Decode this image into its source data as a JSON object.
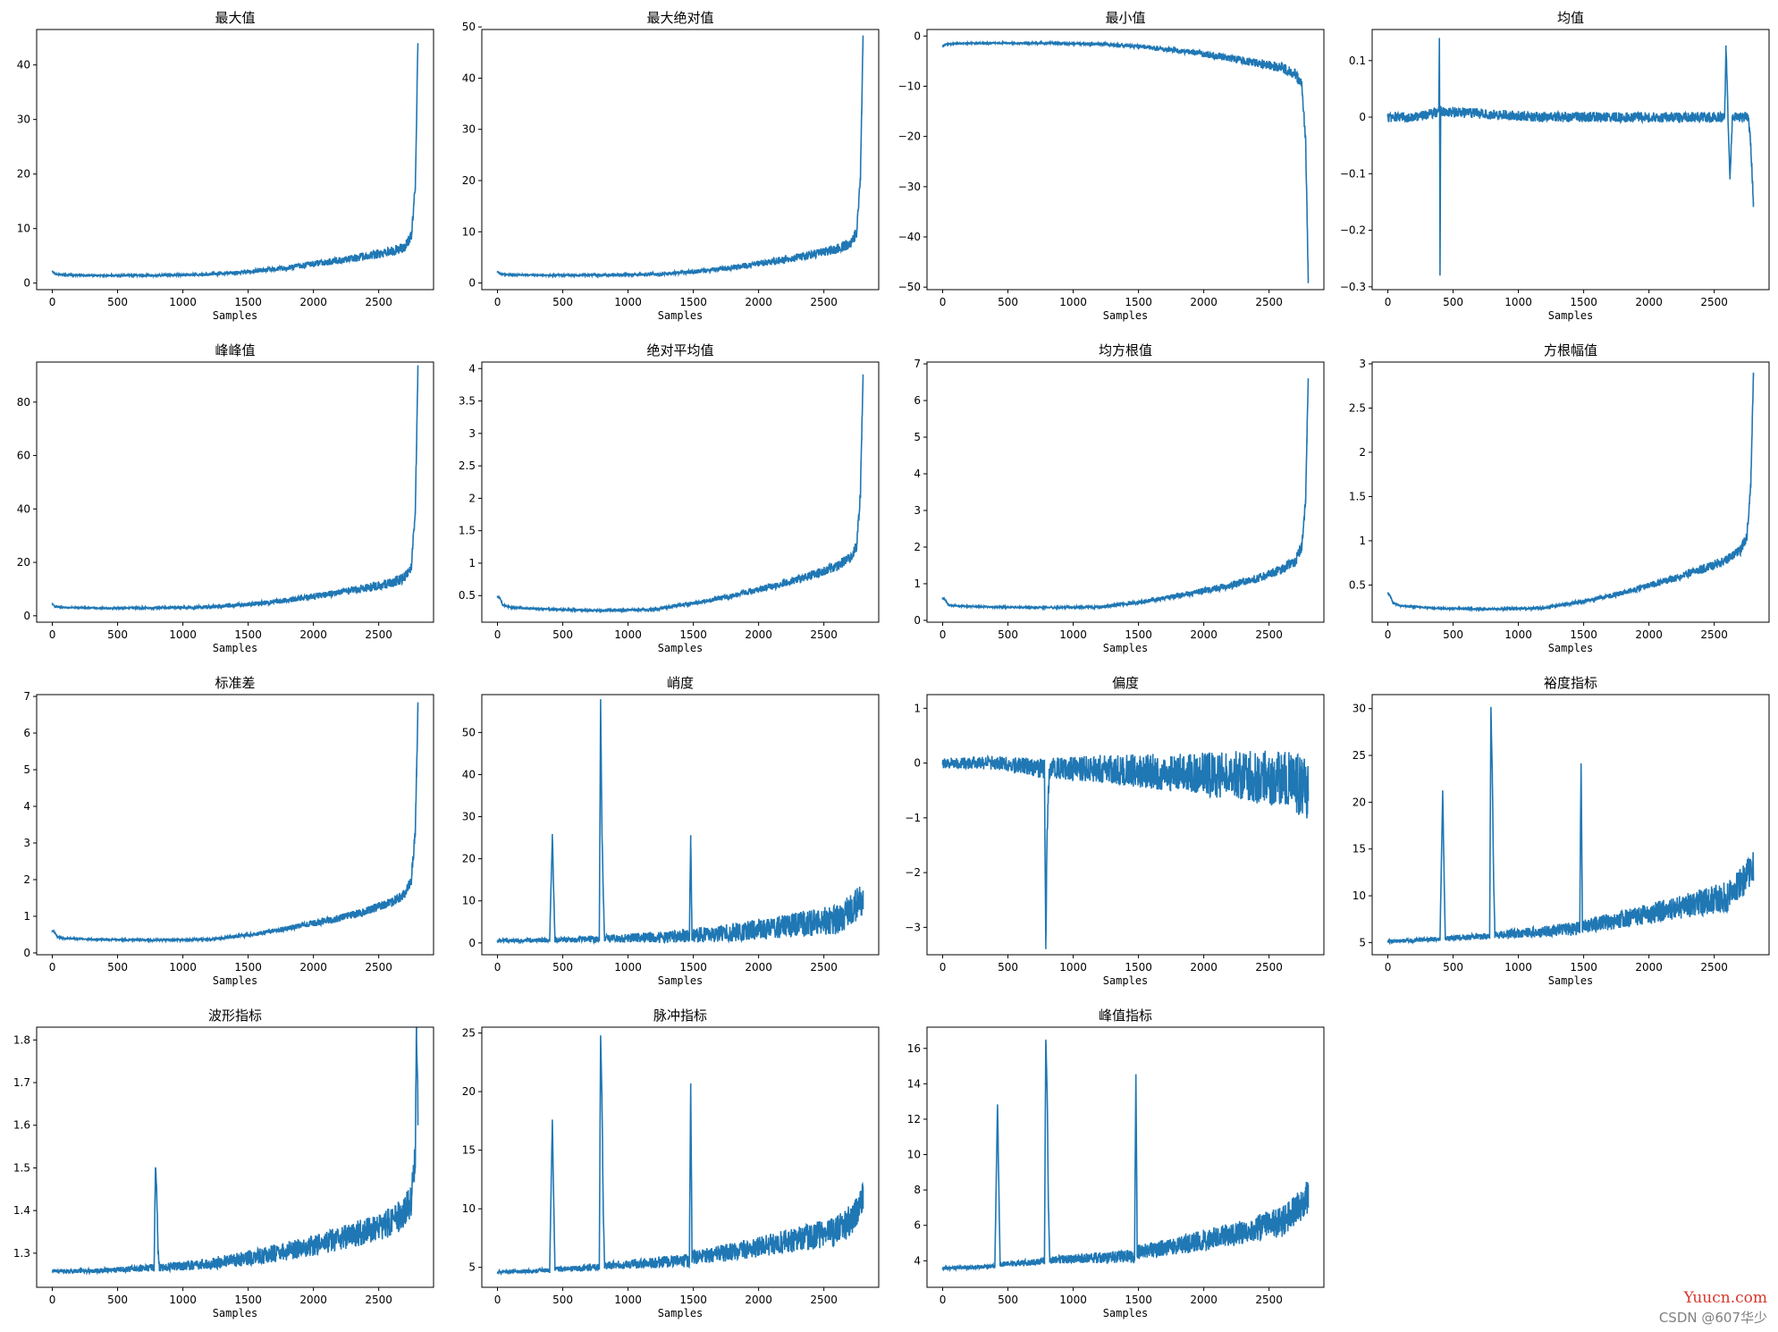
{
  "figure": {
    "background": "#ffffff"
  },
  "style": {
    "line_color": "#1f77b4",
    "axis_color": "#000000"
  },
  "watermarks": {
    "site": "Yuucn.com",
    "credit": "CSDN @607华少"
  },
  "chart_data": [
    {
      "type": "line",
      "title": "最大值",
      "xlabel": "Samples",
      "ylabel": "",
      "xlim": [
        -120,
        2920
      ],
      "ylim": [
        -1.2,
        46.5
      ],
      "xticks": [
        0,
        500,
        1000,
        1500,
        2000,
        2500
      ],
      "yticks": [
        0,
        10,
        20,
        30,
        40
      ],
      "shape": "rise",
      "series": [
        {
          "x": [
            0,
            20,
            100,
            400,
            800,
            1200,
            1500,
            1800,
            2000,
            2200,
            2400,
            2600,
            2700,
            2750,
            2780,
            2790,
            2800
          ],
          "y": [
            2.1,
            1.6,
            1.4,
            1.3,
            1.3,
            1.4,
            1.8,
            2.5,
            3.1,
            3.7,
            4.4,
            5.2,
            6.0,
            8.0,
            17.0,
            29.0,
            44.0
          ]
        }
      ]
    },
    {
      "type": "line",
      "title": "最大绝对值",
      "xlabel": "Samples",
      "ylabel": "",
      "xlim": [
        -120,
        2920
      ],
      "ylim": [
        -1.3,
        49.5
      ],
      "xticks": [
        0,
        500,
        1000,
        1500,
        2000,
        2500
      ],
      "yticks": [
        0,
        10,
        20,
        30,
        40,
        50
      ],
      "shape": "rise",
      "series": [
        {
          "x": [
            0,
            20,
            100,
            400,
            800,
            1200,
            1500,
            1800,
            2000,
            2200,
            2400,
            2600,
            2700,
            2750,
            2780,
            2790,
            2800
          ],
          "y": [
            2.2,
            1.7,
            1.5,
            1.4,
            1.4,
            1.5,
            1.9,
            2.7,
            3.4,
            4.1,
            4.9,
            6.0,
            7.0,
            9.0,
            20.0,
            33.0,
            48.0
          ]
        }
      ]
    },
    {
      "type": "line",
      "title": "最小值",
      "xlabel": "Samples",
      "ylabel": "",
      "xlim": [
        -120,
        2920
      ],
      "ylim": [
        -50.5,
        1.3
      ],
      "xticks": [
        0,
        500,
        1000,
        1500,
        2000,
        2500
      ],
      "yticks": [
        -50,
        -40,
        -30,
        -20,
        -10,
        0
      ],
      "shape": "fall",
      "series": [
        {
          "x": [
            0,
            20,
            100,
            400,
            800,
            1200,
            1500,
            1800,
            2000,
            2200,
            2400,
            2600,
            2700,
            2750,
            2780,
            2790,
            2800
          ],
          "y": [
            -2.0,
            -1.6,
            -1.4,
            -1.3,
            -1.3,
            -1.4,
            -1.8,
            -2.5,
            -3.2,
            -3.9,
            -4.7,
            -5.6,
            -6.8,
            -9.0,
            -20.0,
            -33.0,
            -48.0
          ]
        }
      ]
    },
    {
      "type": "line",
      "title": "均值",
      "xlabel": "Samples",
      "ylabel": "",
      "xlim": [
        -120,
        2920
      ],
      "ylim": [
        -0.305,
        0.155
      ],
      "xticks": [
        0,
        500,
        1000,
        1500,
        2000,
        2500
      ],
      "yticks": [
        -0.3,
        -0.2,
        -0.1,
        0.0,
        0.1
      ],
      "shape": "flat",
      "series": [
        {
          "x": [
            0,
            200,
            390,
            395,
            400,
            405,
            410,
            800,
            1200,
            1600,
            2000,
            2400,
            2580,
            2590,
            2600,
            2620,
            2640,
            2700,
            2760,
            2780,
            2800
          ],
          "y": [
            0.0,
            0.0,
            0.01,
            0.14,
            -0.28,
            0.02,
            0.01,
            0.005,
            0.0,
            0.0,
            0.0,
            0.0,
            0.0,
            0.12,
            0.05,
            -0.11,
            0.0,
            0.0,
            0.0,
            -0.05,
            -0.15
          ]
        }
      ]
    },
    {
      "type": "line",
      "title": "峰峰值",
      "xlabel": "Samples",
      "ylabel": "",
      "xlim": [
        -120,
        2920
      ],
      "ylim": [
        -2.4,
        95
      ],
      "xticks": [
        0,
        500,
        1000,
        1500,
        2000,
        2500
      ],
      "yticks": [
        0,
        20,
        40,
        60,
        80
      ],
      "shape": "rise",
      "series": [
        {
          "x": [
            0,
            20,
            100,
            400,
            800,
            1200,
            1500,
            1800,
            2000,
            2200,
            2400,
            2600,
            2700,
            2750,
            2780,
            2790,
            2800
          ],
          "y": [
            4.2,
            3.3,
            2.9,
            2.7,
            2.7,
            2.9,
            3.7,
            5.2,
            6.5,
            7.8,
            9.3,
            11.0,
            13.0,
            17.0,
            38.0,
            62.0,
            92.0
          ]
        }
      ]
    },
    {
      "type": "line",
      "title": "绝对平均值",
      "xlabel": "Samples",
      "ylabel": "",
      "xlim": [
        -120,
        2920
      ],
      "ylim": [
        0.09,
        4.1
      ],
      "xticks": [
        0,
        500,
        1000,
        1500,
        2000,
        2500
      ],
      "yticks": [
        0.5,
        1.0,
        1.5,
        2.0,
        2.5,
        3.0,
        3.5,
        4.0
      ],
      "shape": "rise",
      "series": [
        {
          "x": [
            0,
            20,
            40,
            100,
            400,
            800,
            1200,
            1500,
            1800,
            2000,
            2200,
            2400,
            2600,
            2700,
            2750,
            2780,
            2790,
            2800
          ],
          "y": [
            0.48,
            0.45,
            0.35,
            0.31,
            0.28,
            0.26,
            0.27,
            0.36,
            0.47,
            0.56,
            0.65,
            0.76,
            0.9,
            1.02,
            1.2,
            2.0,
            2.9,
            3.9
          ]
        }
      ]
    },
    {
      "type": "line",
      "title": "均方根值",
      "xlabel": "Samples",
      "ylabel": "",
      "xlim": [
        -120,
        2920
      ],
      "ylim": [
        -0.05,
        7.05
      ],
      "xticks": [
        0,
        500,
        1000,
        1500,
        2000,
        2500
      ],
      "yticks": [
        0,
        1,
        2,
        3,
        4,
        5,
        6,
        7
      ],
      "shape": "rise",
      "series": [
        {
          "x": [
            0,
            20,
            40,
            100,
            400,
            800,
            1200,
            1500,
            1800,
            2000,
            2200,
            2400,
            2600,
            2700,
            2750,
            2780,
            2790,
            2800
          ],
          "y": [
            0.6,
            0.55,
            0.42,
            0.38,
            0.35,
            0.33,
            0.34,
            0.45,
            0.62,
            0.75,
            0.88,
            1.05,
            1.3,
            1.5,
            1.9,
            3.2,
            4.8,
            6.6
          ]
        }
      ]
    },
    {
      "type": "line",
      "title": "方根幅值",
      "xlabel": "Samples",
      "ylabel": "",
      "xlim": [
        -120,
        2920
      ],
      "ylim": [
        0.08,
        3.02
      ],
      "xticks": [
        0,
        500,
        1000,
        1500,
        2000,
        2500
      ],
      "yticks": [
        0.5,
        1.0,
        1.5,
        2.0,
        2.5,
        3.0
      ],
      "shape": "rise",
      "series": [
        {
          "x": [
            0,
            20,
            40,
            100,
            400,
            800,
            1200,
            1500,
            1800,
            2000,
            2200,
            2400,
            2600,
            2700,
            2750,
            2780,
            2790,
            2800
          ],
          "y": [
            0.4,
            0.37,
            0.29,
            0.26,
            0.23,
            0.22,
            0.23,
            0.3,
            0.39,
            0.47,
            0.55,
            0.64,
            0.75,
            0.85,
            1.0,
            1.6,
            2.2,
            2.85
          ]
        }
      ]
    },
    {
      "type": "line",
      "title": "标准差",
      "xlabel": "Samples",
      "ylabel": "",
      "xlim": [
        -120,
        2920
      ],
      "ylim": [
        -0.05,
        7.05
      ],
      "xticks": [
        0,
        500,
        1000,
        1500,
        2000,
        2500
      ],
      "yticks": [
        0,
        1,
        2,
        3,
        4,
        5,
        6,
        7
      ],
      "shape": "rise",
      "series": [
        {
          "x": [
            0,
            20,
            40,
            100,
            400,
            800,
            1200,
            1500,
            1800,
            2000,
            2200,
            2400,
            2600,
            2700,
            2750,
            2780,
            2790,
            2800
          ],
          "y": [
            0.6,
            0.55,
            0.42,
            0.38,
            0.35,
            0.33,
            0.34,
            0.45,
            0.62,
            0.75,
            0.88,
            1.05,
            1.3,
            1.5,
            1.9,
            3.2,
            4.8,
            6.6
          ]
        }
      ]
    },
    {
      "type": "line",
      "title": "峭度",
      "xlabel": "Samples",
      "ylabel": "",
      "xlim": [
        -120,
        2920
      ],
      "ylim": [
        -2.8,
        59
      ],
      "xticks": [
        0,
        500,
        1000,
        1500,
        2000,
        2500
      ],
      "yticks": [
        0,
        10,
        20,
        30,
        40,
        50
      ],
      "shape": "spikes",
      "series": [
        {
          "x": [
            0,
            400,
            420,
            440,
            780,
            790,
            800,
            810,
            820,
            1470,
            1480,
            1490,
            1800,
            2200,
            2600,
            2700,
            2800
          ],
          "y": [
            0.3,
            0.3,
            25.0,
            0.3,
            0.4,
            57.0,
            26.0,
            12.0,
            0.4,
            0.5,
            23.5,
            0.6,
            1.0,
            2.0,
            3.0,
            5.0,
            8.0
          ]
        }
      ]
    },
    {
      "type": "line",
      "title": "偏度",
      "xlabel": "Samples",
      "ylabel": "",
      "xlim": [
        -120,
        2920
      ],
      "ylim": [
        -3.5,
        1.25
      ],
      "xticks": [
        0,
        500,
        1000,
        1500,
        2000,
        2500
      ],
      "yticks": [
        -3,
        -2,
        -1,
        0,
        1
      ],
      "shape": "spread",
      "series": [
        {
          "x": [
            0,
            400,
            780,
            790,
            800,
            810,
            820,
            1200,
            1600,
            2000,
            2400,
            2600,
            2700,
            2800
          ],
          "y": [
            0.0,
            0.0,
            -0.1,
            -3.3,
            -1.2,
            -0.5,
            -0.1,
            -0.1,
            -0.15,
            -0.2,
            -0.25,
            -0.3,
            -0.35,
            -0.5
          ]
        }
      ]
    },
    {
      "type": "line",
      "title": "裕度指标",
      "xlabel": "Samples",
      "ylabel": "",
      "xlim": [
        -120,
        2920
      ],
      "ylim": [
        3.7,
        31.5
      ],
      "xticks": [
        0,
        500,
        1000,
        1500,
        2000,
        2500
      ],
      "yticks": [
        5,
        10,
        15,
        20,
        25,
        30
      ],
      "shape": "spikes",
      "series": [
        {
          "x": [
            0,
            400,
            420,
            440,
            780,
            790,
            800,
            810,
            820,
            1470,
            1480,
            1490,
            1800,
            2200,
            2600,
            2700,
            2800
          ],
          "y": [
            5.0,
            5.2,
            21.0,
            5.3,
            5.4,
            30.0,
            22.5,
            12.0,
            5.5,
            6.0,
            24.0,
            6.2,
            6.8,
            7.8,
            8.8,
            10.0,
            12.0
          ]
        }
      ]
    },
    {
      "type": "line",
      "title": "波形指标",
      "xlabel": "Samples",
      "ylabel": "",
      "xlim": [
        -120,
        2920
      ],
      "ylim": [
        1.22,
        1.83
      ],
      "xticks": [
        0,
        500,
        1000,
        1500,
        2000,
        2500
      ],
      "yticks": [
        1.3,
        1.4,
        1.5,
        1.6,
        1.7,
        1.8
      ],
      "shape": "risenoisy",
      "series": [
        {
          "x": [
            0,
            400,
            780,
            790,
            800,
            810,
            820,
            1200,
            1600,
            2000,
            2400,
            2600,
            2700,
            2750,
            2780,
            2790,
            2800
          ],
          "y": [
            1.255,
            1.255,
            1.26,
            1.5,
            1.43,
            1.3,
            1.26,
            1.265,
            1.28,
            1.3,
            1.33,
            1.35,
            1.37,
            1.4,
            1.5,
            1.8,
            1.6
          ]
        }
      ]
    },
    {
      "type": "line",
      "title": "脉冲指标",
      "xlabel": "Samples",
      "ylabel": "",
      "xlim": [
        -120,
        2920
      ],
      "ylim": [
        3.3,
        25.5
      ],
      "xticks": [
        0,
        500,
        1000,
        1500,
        2000,
        2500
      ],
      "yticks": [
        5,
        10,
        15,
        20,
        25
      ],
      "shape": "spikes",
      "series": [
        {
          "x": [
            0,
            400,
            420,
            440,
            780,
            790,
            800,
            810,
            820,
            1470,
            1480,
            1490,
            1800,
            2200,
            2600,
            2700,
            2800
          ],
          "y": [
            4.5,
            4.6,
            17.5,
            4.7,
            4.8,
            24.8,
            19.0,
            10.0,
            4.9,
            5.2,
            20.0,
            5.4,
            5.8,
            6.5,
            7.2,
            8.0,
            10.0
          ]
        }
      ]
    },
    {
      "type": "line",
      "title": "峰值指标",
      "xlabel": "Samples",
      "ylabel": "",
      "xlim": [
        -120,
        2920
      ],
      "ylim": [
        2.5,
        17.2
      ],
      "xticks": [
        0,
        500,
        1000,
        1500,
        2000,
        2500
      ],
      "yticks": [
        4,
        6,
        8,
        10,
        12,
        14,
        16
      ],
      "shape": "spikes",
      "series": [
        {
          "x": [
            0,
            400,
            420,
            440,
            780,
            790,
            800,
            810,
            820,
            1470,
            1480,
            1490,
            1800,
            2200,
            2600,
            2700,
            2800
          ],
          "y": [
            3.5,
            3.6,
            12.8,
            3.7,
            3.8,
            16.5,
            13.5,
            7.0,
            3.9,
            4.0,
            14.5,
            4.2,
            4.5,
            5.0,
            5.6,
            6.2,
            7.0
          ]
        }
      ]
    }
  ]
}
